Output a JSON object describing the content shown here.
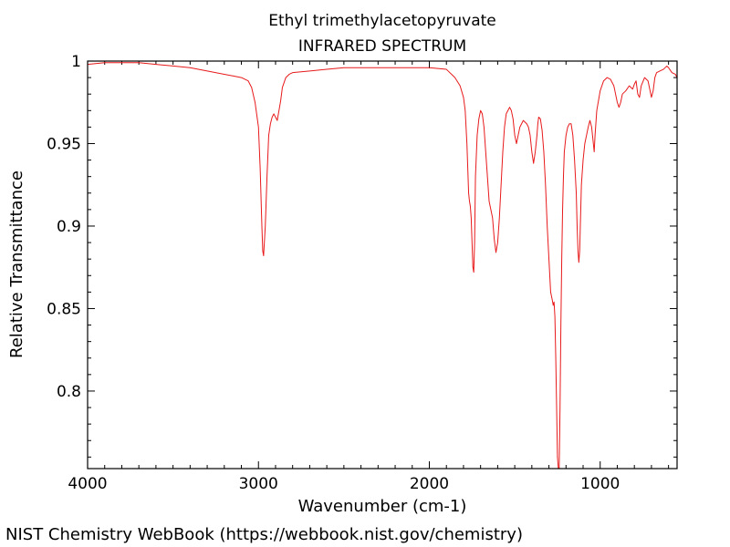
{
  "chart_data": {
    "type": "line",
    "title": "Ethyl trimethylacetopyruvate",
    "subtitle": "INFRARED SPECTRUM",
    "xlabel": "Wavenumber (cm-1)",
    "ylabel": "Relative Transmittance",
    "xlim": [
      4000,
      550
    ],
    "ylim": [
      0.753,
      1.0
    ],
    "x_reversed": true,
    "x_ticks": [
      4000,
      3000,
      2000,
      1000
    ],
    "x_tick_labels": [
      "4000",
      "3000",
      "2000",
      "1000"
    ],
    "y_ticks": [
      1.0,
      0.95,
      0.9,
      0.85,
      0.8
    ],
    "y_tick_labels": [
      "1",
      "0.95",
      "0.9",
      "0.85",
      "0.8"
    ],
    "grid": false,
    "series": [
      {
        "color": "#e8191a",
        "x": [
          4000,
          3900,
          3800,
          3700,
          3600,
          3500,
          3400,
          3300,
          3200,
          3150,
          3100,
          3060,
          3040,
          3020,
          3000,
          2990,
          2980,
          2975,
          2970,
          2960,
          2950,
          2940,
          2930,
          2920,
          2910,
          2900,
          2890,
          2880,
          2870,
          2860,
          2840,
          2820,
          2800,
          2700,
          2600,
          2500,
          2400,
          2300,
          2200,
          2100,
          2000,
          1900,
          1850,
          1820,
          1800,
          1790,
          1780,
          1770,
          1765,
          1760,
          1755,
          1750,
          1745,
          1740,
          1735,
          1730,
          1720,
          1710,
          1700,
          1690,
          1680,
          1670,
          1660,
          1650,
          1640,
          1630,
          1620,
          1610,
          1600,
          1590,
          1580,
          1570,
          1560,
          1550,
          1540,
          1530,
          1520,
          1510,
          1500,
          1490,
          1480,
          1470,
          1460,
          1450,
          1440,
          1430,
          1420,
          1410,
          1400,
          1390,
          1380,
          1370,
          1365,
          1360,
          1350,
          1340,
          1330,
          1320,
          1310,
          1300,
          1290,
          1280,
          1275,
          1270,
          1265,
          1260,
          1255,
          1250,
          1245,
          1240,
          1235,
          1230,
          1225,
          1220,
          1215,
          1210,
          1200,
          1190,
          1180,
          1170,
          1160,
          1150,
          1140,
          1135,
          1130,
          1125,
          1120,
          1115,
          1110,
          1100,
          1090,
          1080,
          1070,
          1060,
          1050,
          1040,
          1035,
          1030,
          1020,
          1000,
          980,
          960,
          940,
          920,
          910,
          900,
          890,
          880,
          870,
          850,
          830,
          810,
          800,
          790,
          780,
          770,
          760,
          740,
          720,
          700,
          690,
          680,
          670,
          650,
          630,
          610,
          600,
          580,
          560,
          550
        ],
        "y": [
          0.998,
          0.999,
          0.999,
          0.999,
          0.998,
          0.997,
          0.996,
          0.994,
          0.992,
          0.991,
          0.99,
          0.988,
          0.984,
          0.975,
          0.96,
          0.935,
          0.9,
          0.885,
          0.882,
          0.9,
          0.93,
          0.955,
          0.962,
          0.966,
          0.968,
          0.966,
          0.964,
          0.97,
          0.976,
          0.984,
          0.99,
          0.992,
          0.993,
          0.994,
          0.995,
          0.996,
          0.996,
          0.996,
          0.996,
          0.996,
          0.996,
          0.995,
          0.99,
          0.985,
          0.978,
          0.97,
          0.95,
          0.92,
          0.915,
          0.912,
          0.905,
          0.89,
          0.875,
          0.872,
          0.89,
          0.93,
          0.955,
          0.965,
          0.97,
          0.968,
          0.96,
          0.945,
          0.93,
          0.915,
          0.91,
          0.905,
          0.892,
          0.884,
          0.89,
          0.905,
          0.925,
          0.945,
          0.96,
          0.968,
          0.97,
          0.972,
          0.97,
          0.965,
          0.955,
          0.95,
          0.955,
          0.96,
          0.962,
          0.964,
          0.963,
          0.962,
          0.96,
          0.955,
          0.945,
          0.938,
          0.945,
          0.955,
          0.962,
          0.966,
          0.965,
          0.958,
          0.945,
          0.925,
          0.9,
          0.88,
          0.86,
          0.855,
          0.852,
          0.854,
          0.845,
          0.82,
          0.79,
          0.76,
          0.753,
          0.753,
          0.79,
          0.84,
          0.88,
          0.91,
          0.93,
          0.945,
          0.955,
          0.96,
          0.962,
          0.962,
          0.955,
          0.94,
          0.92,
          0.9,
          0.885,
          0.878,
          0.885,
          0.905,
          0.925,
          0.94,
          0.95,
          0.955,
          0.96,
          0.964,
          0.96,
          0.95,
          0.945,
          0.955,
          0.97,
          0.982,
          0.988,
          0.99,
          0.989,
          0.985,
          0.98,
          0.975,
          0.972,
          0.975,
          0.98,
          0.982,
          0.985,
          0.983,
          0.986,
          0.988,
          0.98,
          0.978,
          0.985,
          0.99,
          0.988,
          0.978,
          0.982,
          0.99,
          0.993,
          0.994,
          0.995,
          0.997,
          0.996,
          0.993,
          0.992,
          0.99
        ]
      }
    ]
  },
  "footer": {
    "credit": "NIST Chemistry WebBook (https://webbook.nist.gov/chemistry)"
  }
}
